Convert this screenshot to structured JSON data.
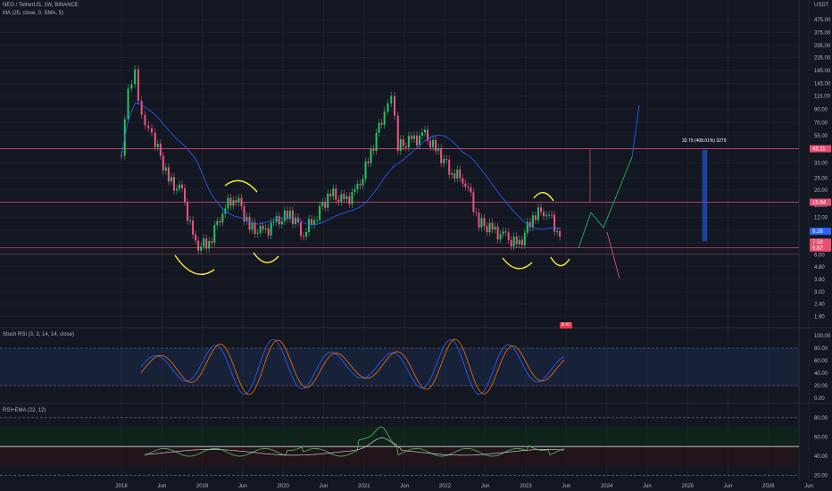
{
  "header": {
    "symbol": "NEO / TetherUS, 1W, BINANCE",
    "ma_legend": "MA (25, close, 0, SMA, 5)",
    "currency": "USDT"
  },
  "price_axis": {
    "ticks": [
      "475.00",
      "375.00",
      "295.00",
      "235.00",
      "185.00",
      "145.00",
      "115.00",
      "90.00",
      "70.00",
      "55.00",
      "43.00",
      "33.00",
      "25.00",
      "20.00",
      "15.00",
      "12.00",
      "9.50",
      "7.50",
      "6.00",
      "4.80",
      "3.80",
      "3.00",
      "2.40",
      "1.90"
    ],
    "levels": {
      "top": "43.11",
      "mid": "15.94",
      "low": "6.82"
    },
    "price_tags": [
      "9.28",
      "7.59",
      "6.82"
    ],
    "badge": "8.42",
    "scale": "log"
  },
  "time_axis": {
    "labels": [
      "2018",
      "Jun",
      "2019",
      "Jun",
      "2020",
      "Jun",
      "2021",
      "Jun",
      "2022",
      "Jun",
      "2023",
      "Jun",
      "2024",
      "Jun",
      "2025",
      "Jun",
      "2026",
      "Jun"
    ]
  },
  "measure": {
    "label": "32.79 (408.01%) 3279"
  },
  "stoch_rsi": {
    "title": "Stoch RSI (3, 3, 14, 14, close)",
    "ticks": [
      "100.00",
      "80.00",
      "60.00",
      "40.00",
      "20.00",
      "0.00"
    ],
    "bands": [
      20,
      80
    ]
  },
  "rsi_ema": {
    "title": "RSI+EMA (22, 12)",
    "ticks": [
      "80.00",
      "60.00",
      "40.00",
      "20.00"
    ],
    "midline": 50
  },
  "colors": {
    "up": "#22c55e",
    "down": "#ef5380",
    "ma": "#2962ff",
    "level": "#e84f70",
    "annotation": "#ffeb3b",
    "stoch_k": "#2962ff",
    "stoch_d": "#ff6d00",
    "rsi": "#4caf50"
  },
  "chart_data": {
    "type": "candlestick",
    "scale": "log",
    "x": [
      "2018-01",
      "2018-02",
      "2018-03",
      "2018-04",
      "2018-05",
      "2018-06",
      "2018-08",
      "2018-10",
      "2018-12",
      "2019-02",
      "2019-04",
      "2019-06",
      "2019-08",
      "2019-10",
      "2019-12",
      "2020-02",
      "2020-04",
      "2020-06",
      "2020-08",
      "2020-10",
      "2020-12",
      "2021-02",
      "2021-04",
      "2021-05",
      "2021-06",
      "2021-08",
      "2021-10",
      "2021-12",
      "2022-02",
      "2022-04",
      "2022-06",
      "2022-08",
      "2022-10",
      "2022-12",
      "2023-02",
      "2023-04",
      "2023-06"
    ],
    "close": [
      38,
      120,
      170,
      80,
      70,
      50,
      24,
      19,
      7,
      7.5,
      14,
      18,
      10,
      9,
      11,
      13,
      9,
      13,
      19,
      16,
      20,
      40,
      90,
      130,
      45,
      50,
      55,
      40,
      28,
      24,
      11,
      9.5,
      8.2,
      7.2,
      12.5,
      14,
      8.4
    ],
    "levels": [
      43.11,
      15.94,
      6.82
    ],
    "ylim": [
      1.6,
      600
    ]
  }
}
